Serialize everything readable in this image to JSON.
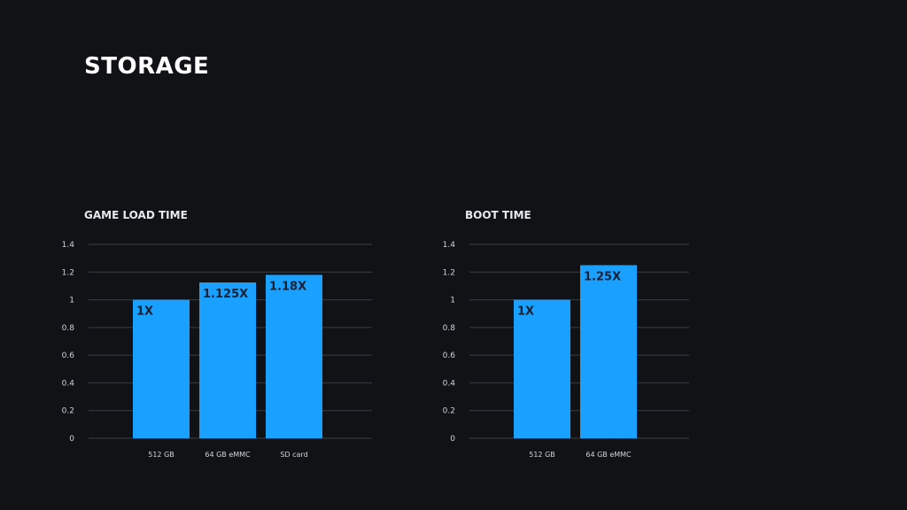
{
  "title": "STORAGE",
  "colors": {
    "background": "#111216",
    "bar": "#1aa0ff",
    "grid": "#3a3d45",
    "text": "#ffffff"
  },
  "chart_data": [
    {
      "type": "bar",
      "title": "GAME LOAD TIME",
      "categories": [
        "512 GB",
        "64 GB eMMC",
        "SD card"
      ],
      "values": [
        1.0,
        1.125,
        1.18
      ],
      "data_labels": [
        "1X",
        "1.125X",
        "1.18X"
      ],
      "ylim": [
        0,
        1.4
      ],
      "yticks": [
        "0",
        "0.2",
        "0.4",
        "0.6",
        "0.8",
        "1",
        "1.2",
        "1.4"
      ],
      "grid": true
    },
    {
      "type": "bar",
      "title": "BOOT TIME",
      "categories": [
        "512 GB",
        "64 GB eMMC"
      ],
      "values": [
        1.0,
        1.25
      ],
      "data_labels": [
        "1X",
        "1.25X"
      ],
      "ylim": [
        0,
        1.4
      ],
      "yticks": [
        "0",
        "0.2",
        "0.4",
        "0.6",
        "0.8",
        "1",
        "1.2",
        "1.4"
      ],
      "grid": true
    }
  ]
}
